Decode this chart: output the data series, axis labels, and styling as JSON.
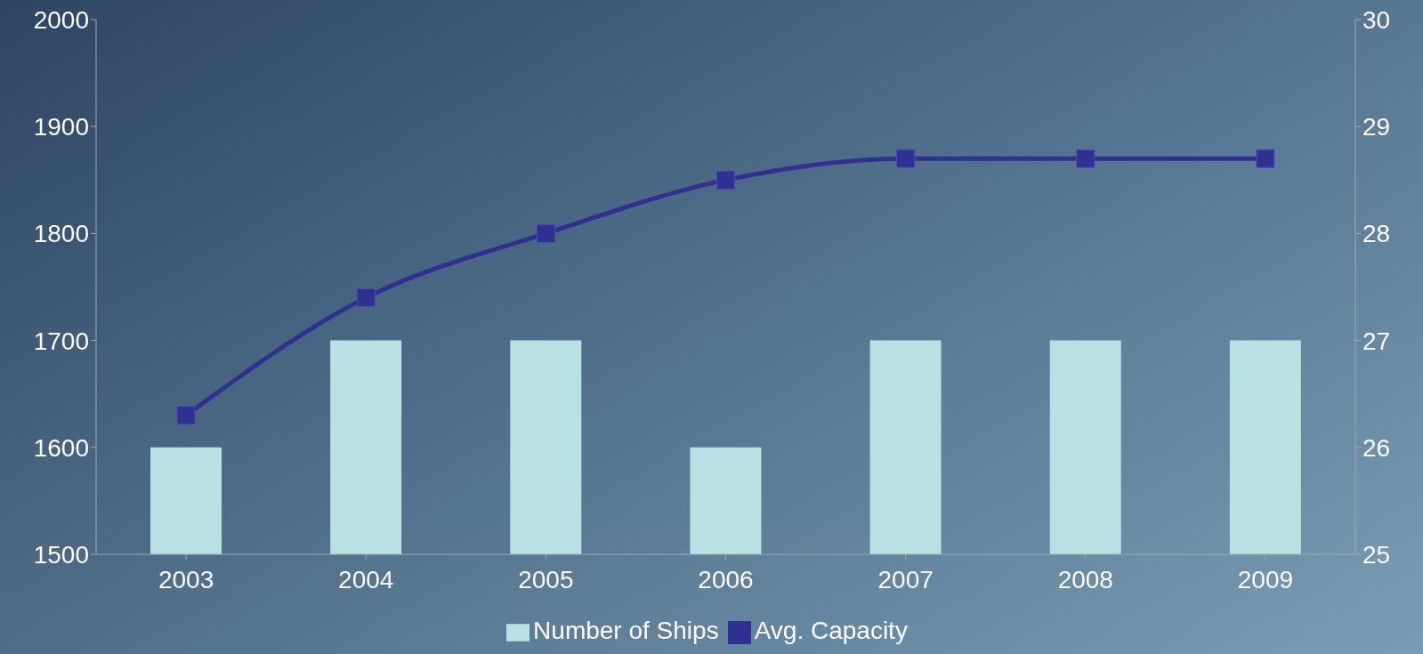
{
  "chart_data": {
    "type": "bar",
    "categories": [
      "2003",
      "2004",
      "2005",
      "2006",
      "2007",
      "2008",
      "2009"
    ],
    "series": [
      {
        "name": "Number of Ships",
        "color": "#b9e0e3",
        "values": [
          1600,
          1700,
          1700,
          1600,
          1700,
          1700,
          1700
        ]
      },
      {
        "name": "Avg. Capacity",
        "type": "line",
        "axis": "y2",
        "color": "#2e3192",
        "marker": "square",
        "values": [
          26.3,
          27.4,
          28.0,
          28.5,
          28.7,
          28.7,
          28.7
        ]
      }
    ],
    "ylim": [
      1500,
      2000
    ],
    "yticks": [
      1500,
      1600,
      1700,
      1800,
      1900,
      2000
    ],
    "y2lim": [
      25,
      30
    ],
    "y2ticks": [
      25,
      26,
      27,
      28,
      29,
      30
    ],
    "grid": false,
    "legend": "bottom"
  }
}
